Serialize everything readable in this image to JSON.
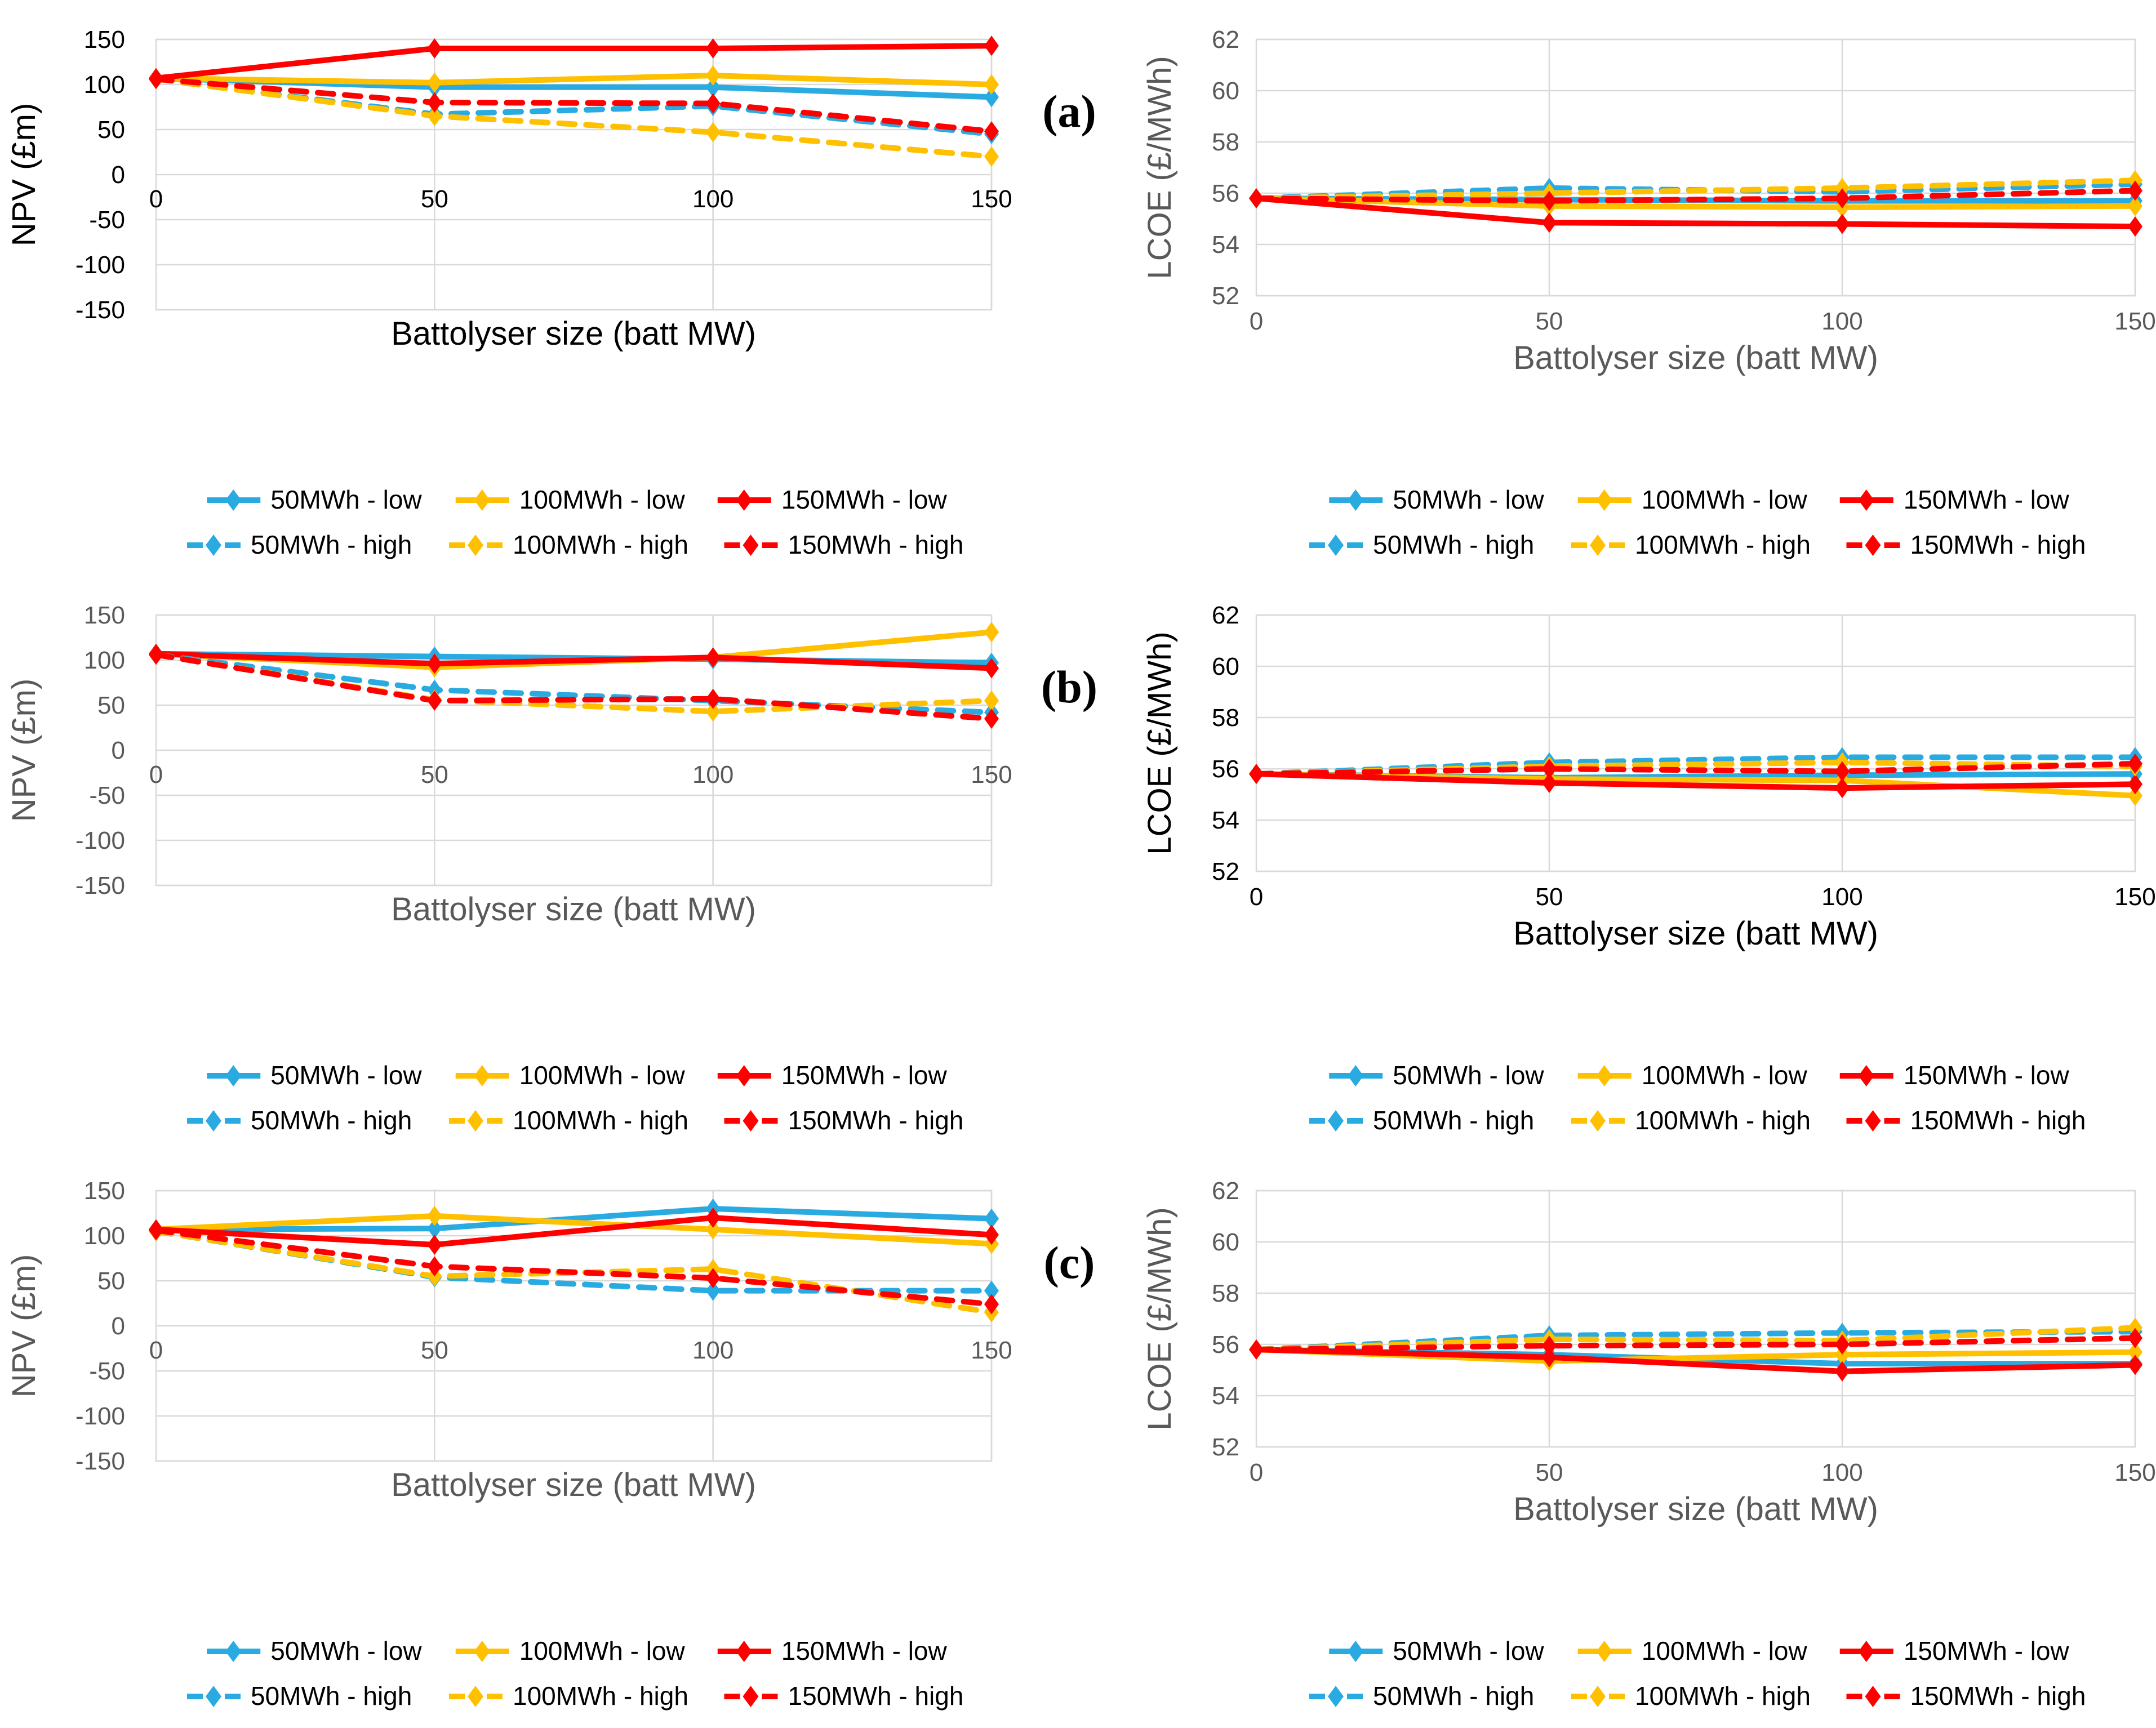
{
  "figure": {
    "background": "#ffffff"
  },
  "colors": {
    "blue": "#29ABE2",
    "orange": "#FFC000",
    "red": "#FF0000",
    "grid": "#D9D9D9",
    "gray_text": "#595959",
    "black_text": "#000000",
    "legend_text": "#000000"
  },
  "panels": [
    {
      "label": "(a)"
    },
    {
      "label": "(b)"
    },
    {
      "label": "(c)"
    }
  ],
  "legend": {
    "rows": [
      [
        {
          "label": "50MWh - low",
          "color": "blue",
          "style": "solid"
        },
        {
          "label": "100MWh - low",
          "color": "orange",
          "style": "solid"
        },
        {
          "label": "150MWh - low",
          "color": "red",
          "style": "solid"
        }
      ],
      [
        {
          "label": "50MWh - high",
          "color": "blue",
          "style": "dashed"
        },
        {
          "label": "100MWh - high",
          "color": "orange",
          "style": "dashed"
        },
        {
          "label": "150MWh - high",
          "color": "red",
          "style": "dashed"
        }
      ]
    ]
  },
  "chart_data": [
    {
      "id": "npv-a",
      "panel": 0,
      "side": "left",
      "type": "line",
      "title": "",
      "ylabel": "NPV (£m)",
      "xlabel": "Battolyser  size (batt MW)",
      "x": [
        0,
        50,
        100,
        150
      ],
      "ylim": [
        -150,
        150
      ],
      "yticks": [
        150,
        100,
        50,
        0,
        -50,
        -100,
        -150
      ],
      "grid": true,
      "text_color": "black",
      "series": [
        {
          "name": "50MWh - low",
          "color": "blue",
          "style": "solid",
          "values": [
            107,
            97,
            97,
            86
          ]
        },
        {
          "name": "100MWh - low",
          "color": "orange",
          "style": "solid",
          "values": [
            107,
            102,
            110,
            100
          ]
        },
        {
          "name": "150MWh - low",
          "color": "red",
          "style": "solid",
          "values": [
            107,
            140,
            140,
            143
          ]
        },
        {
          "name": "50MWh - high",
          "color": "blue",
          "style": "dashed",
          "values": [
            106,
            67,
            76,
            45
          ]
        },
        {
          "name": "100MWh - high",
          "color": "orange",
          "style": "dashed",
          "values": [
            106,
            65,
            47,
            20
          ]
        },
        {
          "name": "150MWh - high",
          "color": "red",
          "style": "dashed",
          "values": [
            106,
            80,
            79,
            48
          ]
        }
      ]
    },
    {
      "id": "lcoe-a",
      "panel": 0,
      "side": "right",
      "type": "line",
      "title": "",
      "ylabel": "LCOE (£/MWh)",
      "xlabel": "Battolyser size (batt MW)",
      "x": [
        0,
        50,
        100,
        150
      ],
      "ylim": [
        52,
        62
      ],
      "yticks": [
        62,
        60,
        58,
        56,
        54,
        52
      ],
      "grid": true,
      "text_color": "gray",
      "series": [
        {
          "name": "50MWh - low",
          "color": "blue",
          "style": "solid",
          "values": [
            55.8,
            55.75,
            55.7,
            55.7
          ]
        },
        {
          "name": "100MWh - low",
          "color": "orange",
          "style": "solid",
          "values": [
            55.8,
            55.5,
            55.45,
            55.5
          ]
        },
        {
          "name": "150MWh - low",
          "color": "red",
          "style": "solid",
          "values": [
            55.8,
            54.85,
            54.8,
            54.7
          ]
        },
        {
          "name": "50MWh - high",
          "color": "blue",
          "style": "dashed",
          "values": [
            55.8,
            56.2,
            56.05,
            56.35
          ]
        },
        {
          "name": "100MWh - high",
          "color": "orange",
          "style": "dashed",
          "values": [
            55.8,
            56.0,
            56.2,
            56.5
          ]
        },
        {
          "name": "150MWh - high",
          "color": "red",
          "style": "dashed",
          "values": [
            55.8,
            55.7,
            55.8,
            56.1
          ]
        }
      ]
    },
    {
      "id": "npv-b",
      "panel": 1,
      "side": "left",
      "type": "line",
      "title": "",
      "ylabel": "NPV (£m)",
      "xlabel": "Battolyser  size (batt MW)",
      "x": [
        0,
        50,
        100,
        150
      ],
      "ylim": [
        -150,
        150
      ],
      "yticks": [
        150,
        100,
        50,
        0,
        -50,
        -100,
        -150
      ],
      "grid": true,
      "text_color": "gray",
      "series": [
        {
          "name": "50MWh - low",
          "color": "blue",
          "style": "solid",
          "values": [
            107,
            104,
            101,
            97
          ]
        },
        {
          "name": "100MWh - low",
          "color": "orange",
          "style": "solid",
          "values": [
            107,
            92,
            103,
            131
          ]
        },
        {
          "name": "150MWh - low",
          "color": "red",
          "style": "solid",
          "values": [
            107,
            96,
            103,
            91
          ]
        },
        {
          "name": "50MWh - high",
          "color": "blue",
          "style": "dashed",
          "values": [
            106,
            67,
            55,
            42
          ]
        },
        {
          "name": "100MWh - high",
          "color": "orange",
          "style": "dashed",
          "values": [
            106,
            56,
            43,
            55
          ]
        },
        {
          "name": "150MWh - high",
          "color": "red",
          "style": "dashed",
          "values": [
            106,
            55,
            57,
            35
          ]
        }
      ]
    },
    {
      "id": "lcoe-b",
      "panel": 1,
      "side": "right",
      "type": "line",
      "title": "",
      "ylabel": "LCOE (£/MWh)",
      "xlabel": "Battolyser size (batt MW)",
      "x": [
        0,
        50,
        100,
        150
      ],
      "ylim": [
        52,
        62
      ],
      "yticks": [
        62,
        60,
        58,
        56,
        54,
        52
      ],
      "grid": true,
      "text_color": "black",
      "series": [
        {
          "name": "50MWh - low",
          "color": "blue",
          "style": "solid",
          "values": [
            55.8,
            55.65,
            55.75,
            55.8
          ]
        },
        {
          "name": "100MWh - low",
          "color": "orange",
          "style": "solid",
          "values": [
            55.8,
            55.6,
            55.55,
            54.95
          ]
        },
        {
          "name": "150MWh - low",
          "color": "red",
          "style": "solid",
          "values": [
            55.8,
            55.45,
            55.25,
            55.4
          ]
        },
        {
          "name": "50MWh - high",
          "color": "blue",
          "style": "dashed",
          "values": [
            55.8,
            56.25,
            56.45,
            56.45
          ]
        },
        {
          "name": "100MWh - high",
          "color": "orange",
          "style": "dashed",
          "values": [
            55.8,
            56.1,
            56.25,
            56.1
          ]
        },
        {
          "name": "150MWh - high",
          "color": "red",
          "style": "dashed",
          "values": [
            55.8,
            56.0,
            55.9,
            56.2
          ]
        }
      ]
    },
    {
      "id": "npv-c",
      "panel": 2,
      "side": "left",
      "type": "line",
      "title": "",
      "ylabel": "NPV (£m)",
      "xlabel": "Battolyser  size (batt MW)",
      "x": [
        0,
        50,
        100,
        150
      ],
      "ylim": [
        -150,
        150
      ],
      "yticks": [
        150,
        100,
        50,
        0,
        -50,
        -100,
        -150
      ],
      "grid": true,
      "text_color": "gray",
      "series": [
        {
          "name": "50MWh - low",
          "color": "blue",
          "style": "solid",
          "values": [
            107,
            108,
            130,
            119
          ]
        },
        {
          "name": "100MWh - low",
          "color": "orange",
          "style": "solid",
          "values": [
            107,
            122,
            107,
            91
          ]
        },
        {
          "name": "150MWh - low",
          "color": "red",
          "style": "solid",
          "values": [
            107,
            90,
            120,
            101
          ]
        },
        {
          "name": "50MWh - high",
          "color": "blue",
          "style": "dashed",
          "values": [
            105,
            54,
            39,
            39
          ]
        },
        {
          "name": "100MWh - high",
          "color": "orange",
          "style": "dashed",
          "values": [
            105,
            55,
            63,
            15
          ]
        },
        {
          "name": "150MWh - high",
          "color": "red",
          "style": "dashed",
          "values": [
            106,
            66,
            53,
            24
          ]
        }
      ]
    },
    {
      "id": "lcoe-c",
      "panel": 2,
      "side": "right",
      "type": "line",
      "title": "",
      "ylabel": "LCOE (£/MWh)",
      "xlabel": "Battolyser size (batt MW)",
      "x": [
        0,
        50,
        100,
        150
      ],
      "ylim": [
        52,
        62
      ],
      "yticks": [
        62,
        60,
        58,
        56,
        54,
        52
      ],
      "grid": true,
      "text_color": "gray",
      "series": [
        {
          "name": "50MWh - low",
          "color": "blue",
          "style": "solid",
          "values": [
            55.8,
            55.6,
            55.25,
            55.25
          ]
        },
        {
          "name": "100MWh - low",
          "color": "orange",
          "style": "solid",
          "values": [
            55.8,
            55.35,
            55.6,
            55.7
          ]
        },
        {
          "name": "150MWh - low",
          "color": "red",
          "style": "solid",
          "values": [
            55.8,
            55.5,
            54.95,
            55.2
          ]
        },
        {
          "name": "50MWh - high",
          "color": "blue",
          "style": "dashed",
          "values": [
            55.8,
            56.35,
            56.45,
            56.5
          ]
        },
        {
          "name": "100MWh - high",
          "color": "orange",
          "style": "dashed",
          "values": [
            55.8,
            56.2,
            56.15,
            56.65
          ]
        },
        {
          "name": "150MWh - high",
          "color": "red",
          "style": "dashed",
          "values": [
            55.8,
            55.95,
            56.0,
            56.25
          ]
        }
      ]
    }
  ]
}
